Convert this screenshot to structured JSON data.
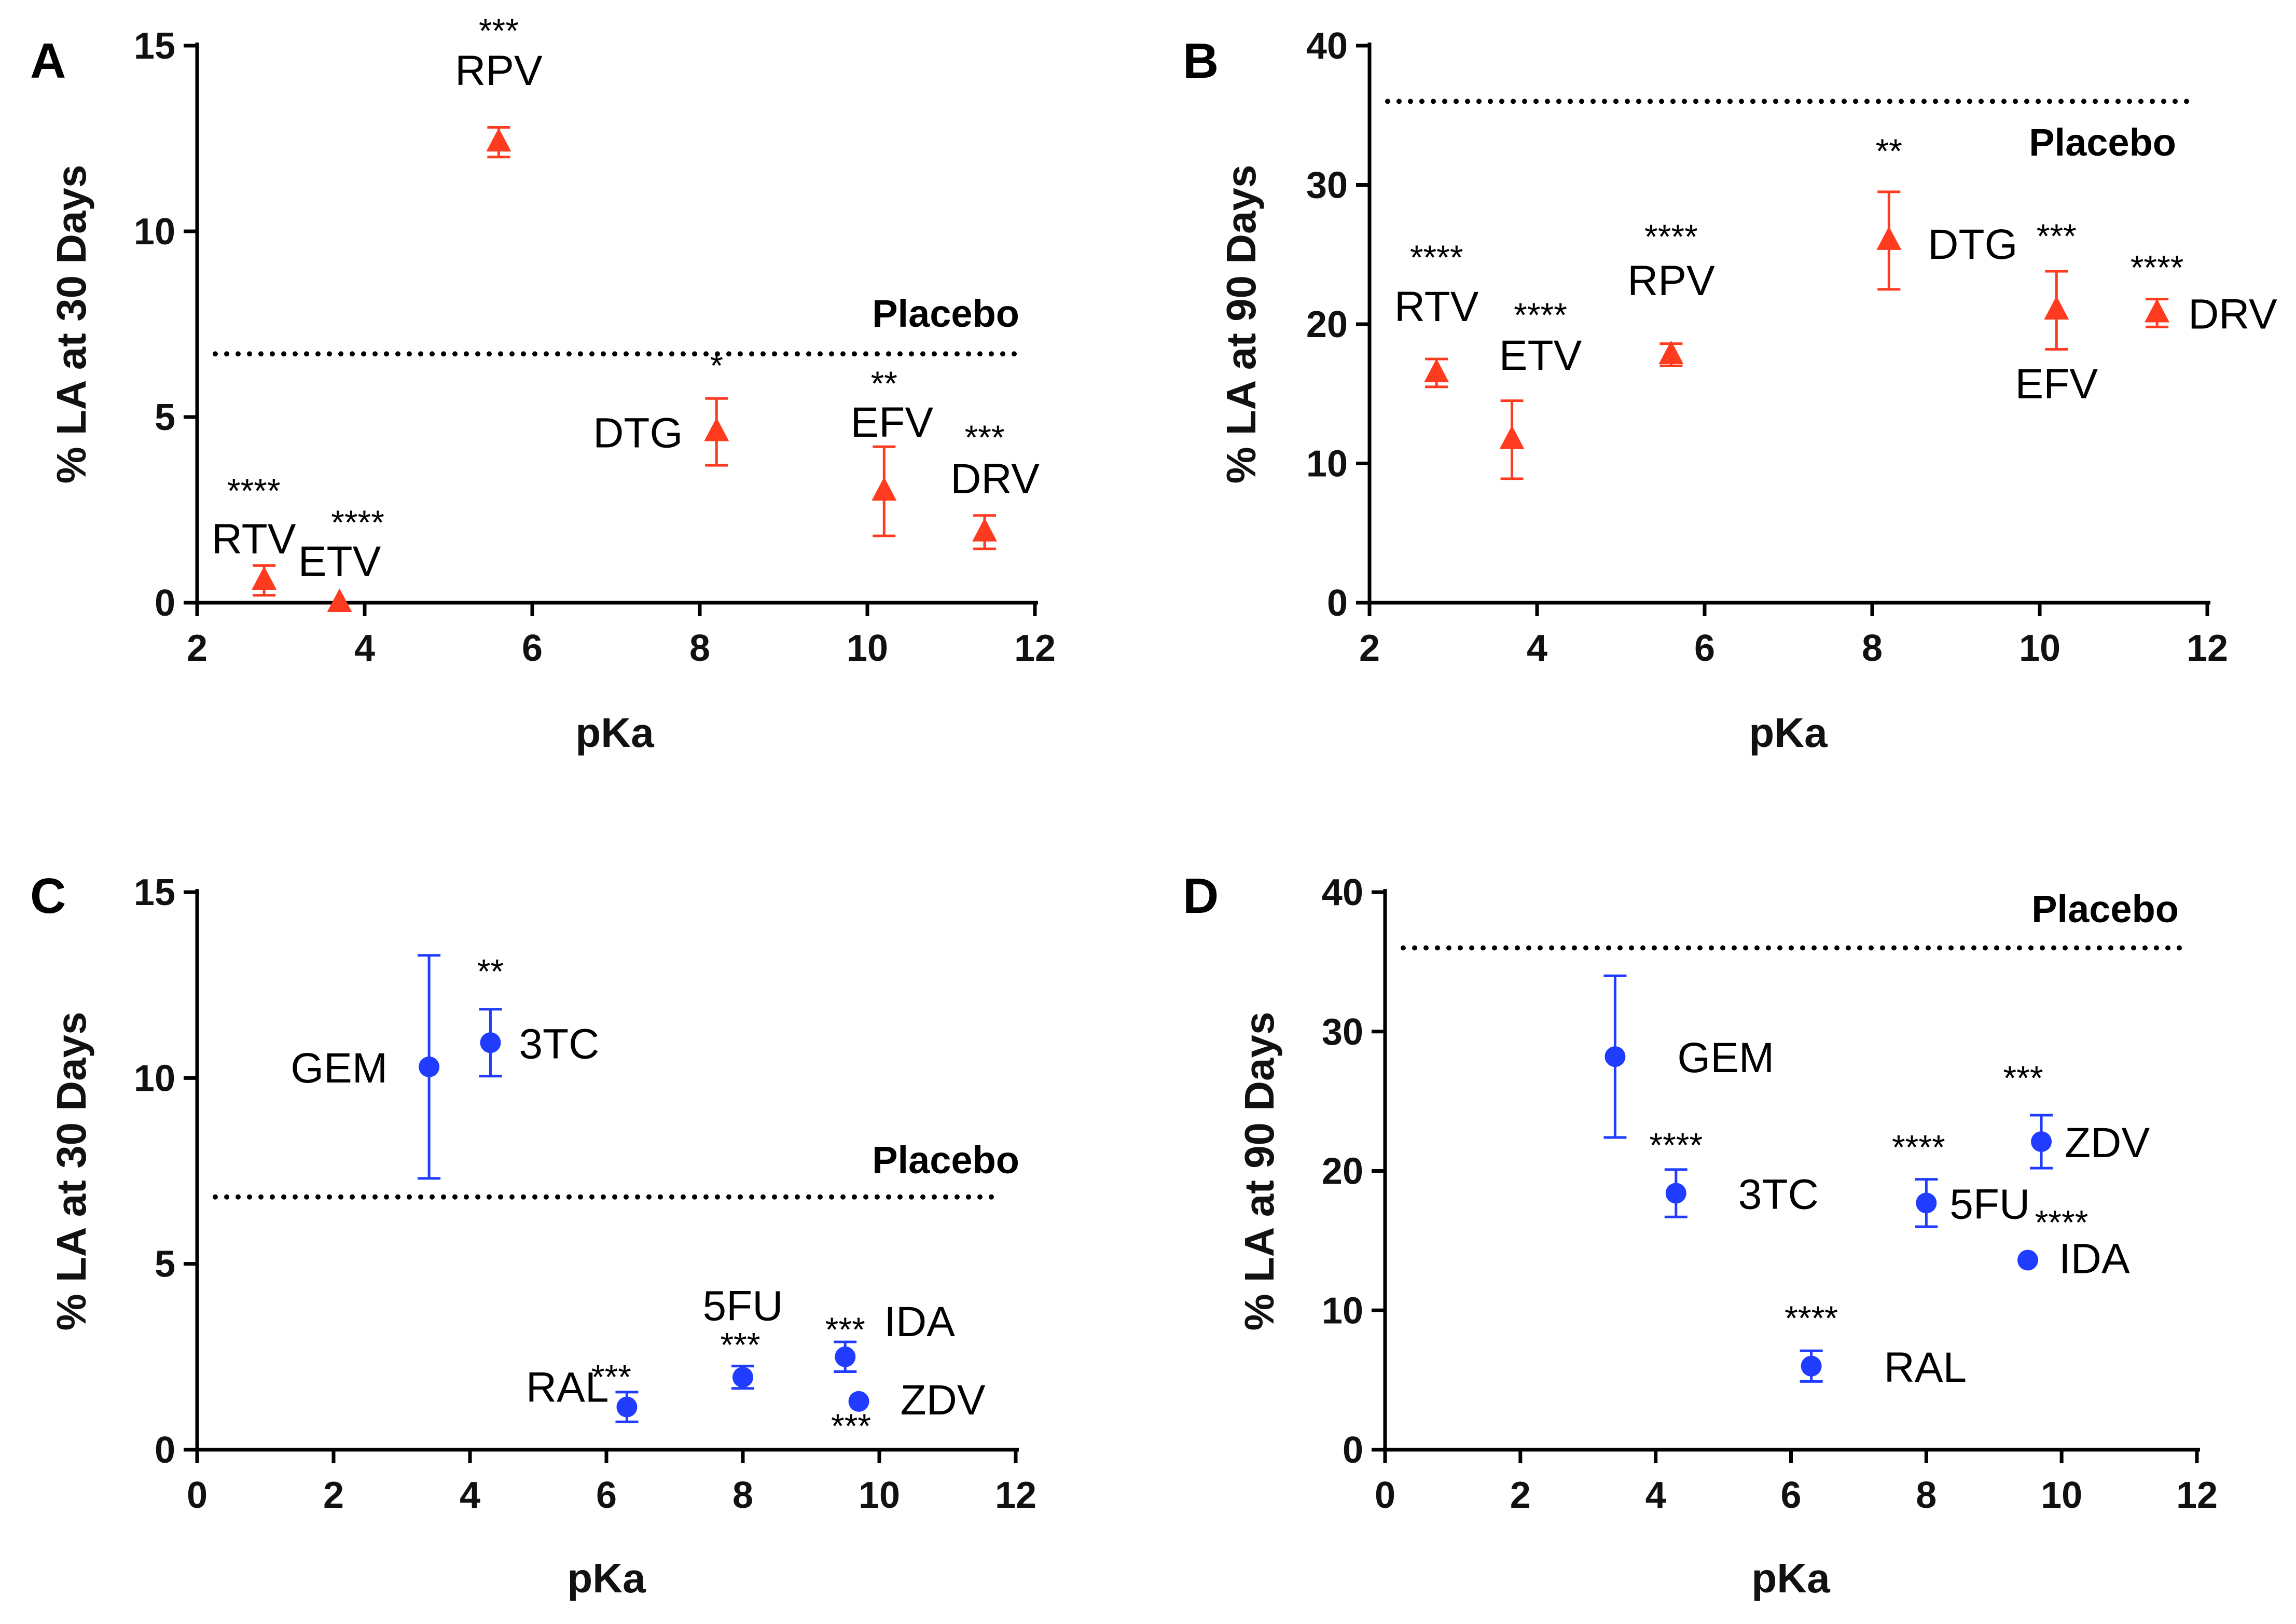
{
  "chart_data": [
    {
      "panel": "A",
      "type": "scatter",
      "xlabel": "pKa",
      "ylabel": "% LA at 30 Days",
      "xlim": [
        2,
        12
      ],
      "ylim": [
        0,
        15
      ],
      "xticks": [
        2,
        4,
        6,
        8,
        10,
        12
      ],
      "yticks": [
        0,
        5,
        10,
        15
      ],
      "marker": "triangle",
      "color": "#ff3b1f",
      "reference": {
        "label": "Placebo",
        "value": 6.7
      },
      "points": [
        {
          "name": "RTV",
          "x": 2.8,
          "y": 0.6,
          "err": 0.4,
          "sig": "****"
        },
        {
          "name": "ETV",
          "x": 3.7,
          "y": 0.0,
          "err": 0.0,
          "sig": "****"
        },
        {
          "name": "RPV",
          "x": 5.6,
          "y": 12.4,
          "err": 0.4,
          "sig": "***"
        },
        {
          "name": "DTG",
          "x": 8.2,
          "y": 4.6,
          "err": 0.9,
          "sig": "*"
        },
        {
          "name": "EFV",
          "x": 10.2,
          "y": 3.0,
          "err": 1.2,
          "sig": "**"
        },
        {
          "name": "DRV",
          "x": 11.4,
          "y": 1.9,
          "err": 0.45,
          "sig": "***"
        }
      ]
    },
    {
      "panel": "B",
      "type": "scatter",
      "xlabel": "pKa",
      "ylabel": "% LA at 90 Days",
      "xlim": [
        2,
        12
      ],
      "ylim": [
        0,
        40
      ],
      "xticks": [
        2,
        4,
        6,
        8,
        10,
        12
      ],
      "yticks": [
        0,
        10,
        20,
        30,
        40
      ],
      "marker": "triangle",
      "color": "#ff3b1f",
      "reference": {
        "label": "Placebo",
        "value": 36
      },
      "points": [
        {
          "name": "RTV",
          "x": 2.8,
          "y": 16.5,
          "err": 1.0,
          "sig": "****"
        },
        {
          "name": "ETV",
          "x": 3.7,
          "y": 11.7,
          "err": 2.8,
          "sig": "****"
        },
        {
          "name": "RPV",
          "x": 5.6,
          "y": 17.8,
          "err": 0.8,
          "sig": "****"
        },
        {
          "name": "DTG",
          "x": 8.2,
          "y": 26.0,
          "err": 3.5,
          "sig": "**"
        },
        {
          "name": "EFV",
          "x": 10.2,
          "y": 21.0,
          "err": 2.8,
          "sig": "***"
        },
        {
          "name": "DRV",
          "x": 11.4,
          "y": 20.8,
          "err": 1.0,
          "sig": "****"
        }
      ]
    },
    {
      "panel": "C",
      "type": "scatter",
      "xlabel": "pKa",
      "ylabel": "% LA at 30 Days",
      "xlim": [
        0,
        12
      ],
      "ylim": [
        0,
        15
      ],
      "xticks": [
        0,
        2,
        4,
        6,
        8,
        10,
        12
      ],
      "yticks": [
        0,
        5,
        10,
        15
      ],
      "marker": "circle",
      "color": "#1f3cff",
      "reference": {
        "label": "Placebo",
        "value": 6.8
      },
      "points": [
        {
          "name": "GEM",
          "x": 3.4,
          "y": 10.3,
          "err": 3.0,
          "sig": ""
        },
        {
          "name": "3TC",
          "x": 4.3,
          "y": 10.95,
          "err": 0.9,
          "sig": "**"
        },
        {
          "name": "RAL",
          "x": 6.3,
          "y": 1.15,
          "err": 0.4,
          "sig": "***"
        },
        {
          "name": "5FU",
          "x": 8.0,
          "y": 1.95,
          "err": 0.3,
          "sig": "***"
        },
        {
          "name": "IDA",
          "x": 9.5,
          "y": 2.5,
          "err": 0.4,
          "sig": "***"
        },
        {
          "name": "ZDV",
          "x": 9.7,
          "y": 1.3,
          "err": 0.0,
          "sig": "***"
        }
      ]
    },
    {
      "panel": "D",
      "type": "scatter",
      "xlabel": "pKa",
      "ylabel": "% LA at 90 Days",
      "xlim": [
        0,
        12
      ],
      "ylim": [
        0,
        40
      ],
      "xticks": [
        0,
        2,
        4,
        6,
        8,
        10,
        12
      ],
      "yticks": [
        0,
        10,
        20,
        30,
        40
      ],
      "marker": "circle",
      "color": "#1f3cff",
      "reference": {
        "label": "Placebo",
        "value": 36
      },
      "points": [
        {
          "name": "GEM",
          "x": 3.4,
          "y": 28.2,
          "err": 5.8,
          "sig": ""
        },
        {
          "name": "3TC",
          "x": 4.3,
          "y": 18.4,
          "err": 1.7,
          "sig": "****"
        },
        {
          "name": "RAL",
          "x": 6.3,
          "y": 6.0,
          "err": 1.1,
          "sig": "****"
        },
        {
          "name": "5FU",
          "x": 8.0,
          "y": 17.7,
          "err": 1.7,
          "sig": "****"
        },
        {
          "name": "ZDV",
          "x": 9.7,
          "y": 22.1,
          "err": 1.9,
          "sig": "***"
        },
        {
          "name": "IDA",
          "x": 9.5,
          "y": 13.6,
          "err": 0.0,
          "sig": "****"
        }
      ]
    }
  ]
}
